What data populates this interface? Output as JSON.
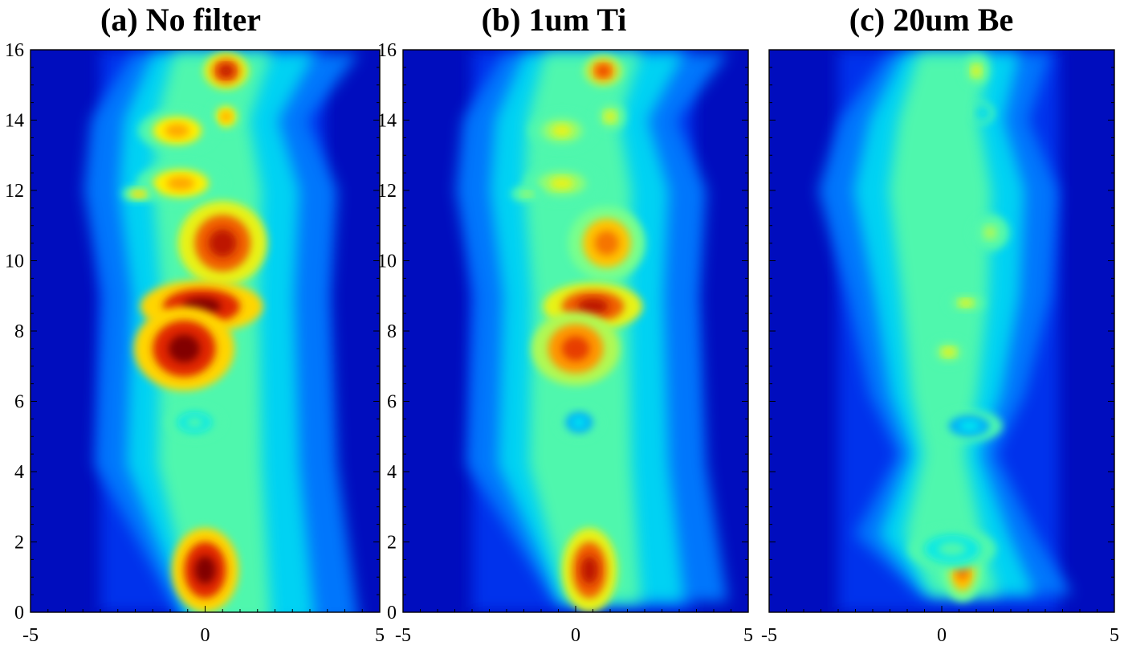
{
  "chart_data": [
    {
      "type": "heatmap",
      "title": "(a) No filter",
      "xlim": [
        -5,
        5
      ],
      "ylim": [
        0,
        16
      ],
      "x_ticks": [
        "-5",
        "0",
        "5"
      ],
      "y_ticks": [
        "0",
        "2",
        "4",
        "6",
        "8",
        "10",
        "12",
        "14",
        "16"
      ],
      "colormap": "jet",
      "spine": [
        [
          -0.3,
          0.6,
          4.2
        ],
        [
          4.2,
          3.0,
          3.6
        ],
        [
          9.0,
          2.8,
          3.4
        ],
        [
          12.0,
          3.3,
          3.6
        ],
        [
          14.0,
          3.1,
          2.8
        ],
        [
          15.9,
          2.0,
          4.2
        ]
      ],
      "hotspots": [
        {
          "x": 0.0,
          "y": 1.2,
          "sx": 0.6,
          "sy": 0.8,
          "level": 1.0
        },
        {
          "x": 0.6,
          "y": 15.4,
          "sx": 0.4,
          "sy": 0.35,
          "level": 0.95
        },
        {
          "x": 0.6,
          "y": 14.1,
          "sx": 0.3,
          "sy": 0.3,
          "level": 0.8
        },
        {
          "x": -0.8,
          "y": 13.7,
          "sx": 0.7,
          "sy": 0.4,
          "level": 0.8
        },
        {
          "x": -0.7,
          "y": 12.2,
          "sx": 0.8,
          "sy": 0.4,
          "level": 0.8
        },
        {
          "x": -1.9,
          "y": 11.9,
          "sx": 0.3,
          "sy": 0.15,
          "level": 0.75
        },
        {
          "x": 0.5,
          "y": 10.5,
          "sx": 0.8,
          "sy": 0.8,
          "level": 0.95
        },
        {
          "x": -0.1,
          "y": 8.7,
          "sx": 1.1,
          "sy": 0.5,
          "level": 1.0
        },
        {
          "x": -0.6,
          "y": 7.5,
          "sx": 0.9,
          "sy": 0.8,
          "level": 1.0
        },
        {
          "x": -0.3,
          "y": 5.4,
          "sx": 0.5,
          "sy": 0.3,
          "level": 0.55
        }
      ]
    },
    {
      "type": "heatmap",
      "title": "(b) 1um Ti",
      "xlim": [
        -5,
        5
      ],
      "ylim": [
        0,
        16
      ],
      "x_ticks": [
        "-5",
        "0",
        "5"
      ],
      "y_ticks": [
        "0",
        "2",
        "4",
        "6",
        "8",
        "10",
        "12",
        "14",
        "16"
      ],
      "colormap": "jet",
      "spine": [
        [
          0.3,
          0.6,
          4.2
        ],
        [
          4.2,
          3.0,
          3.6
        ],
        [
          9.0,
          2.8,
          3.4
        ],
        [
          12.0,
          3.3,
          3.6
        ],
        [
          14.0,
          3.1,
          2.8
        ],
        [
          15.9,
          2.0,
          4.2
        ]
      ],
      "hotspots": [
        {
          "x": 0.4,
          "y": 1.2,
          "sx": 0.5,
          "sy": 0.8,
          "level": 0.95
        },
        {
          "x": 0.8,
          "y": 15.4,
          "sx": 0.35,
          "sy": 0.3,
          "level": 0.9
        },
        {
          "x": 1.0,
          "y": 14.1,
          "sx": 0.3,
          "sy": 0.3,
          "level": 0.7
        },
        {
          "x": -0.4,
          "y": 13.7,
          "sx": 0.6,
          "sy": 0.35,
          "level": 0.7
        },
        {
          "x": -0.4,
          "y": 12.2,
          "sx": 0.7,
          "sy": 0.35,
          "level": 0.7
        },
        {
          "x": -1.4,
          "y": 11.9,
          "sx": 0.3,
          "sy": 0.15,
          "level": 0.65
        },
        {
          "x": 0.9,
          "y": 10.5,
          "sx": 0.7,
          "sy": 0.7,
          "level": 0.85
        },
        {
          "x": 0.5,
          "y": 8.7,
          "sx": 0.9,
          "sy": 0.45,
          "level": 0.95
        },
        {
          "x": 0.0,
          "y": 7.5,
          "sx": 0.8,
          "sy": 0.7,
          "level": 0.9
        },
        {
          "x": 0.1,
          "y": 5.4,
          "sx": 0.4,
          "sy": 0.3,
          "level": 0.45
        }
      ]
    },
    {
      "type": "heatmap",
      "title": "(c) 20um Be",
      "xlim": [
        -5,
        5
      ],
      "ylim": [
        0,
        16
      ],
      "x_ticks": [
        "-5",
        "0",
        "5"
      ],
      "y_ticks": [],
      "colormap": "jet",
      "spine": [
        [
          0.5,
          0.6,
          3.6
        ],
        [
          2.2,
          2.4,
          2.6
        ],
        [
          4.5,
          1.2,
          1.5
        ],
        [
          6.2,
          2.0,
          2.3
        ],
        [
          9.0,
          2.6,
          3.0
        ],
        [
          12.0,
          3.4,
          3.2
        ],
        [
          14.0,
          2.8,
          2.4
        ],
        [
          15.9,
          1.5,
          3.0
        ]
      ],
      "hotspots": [
        {
          "x": 0.6,
          "y": 1.2,
          "sx": 0.35,
          "sy": 0.6,
          "level": 0.85
        },
        {
          "x": 0.3,
          "y": 1.8,
          "sx": 0.8,
          "sy": 0.4,
          "level": 0.55
        },
        {
          "x": 1.0,
          "y": 15.4,
          "sx": 0.25,
          "sy": 0.3,
          "level": 0.7
        },
        {
          "x": 1.2,
          "y": 14.2,
          "sx": 0.2,
          "sy": 0.2,
          "level": 0.5
        },
        {
          "x": 1.4,
          "y": 10.8,
          "sx": 0.35,
          "sy": 0.35,
          "level": 0.65
        },
        {
          "x": 0.7,
          "y": 8.8,
          "sx": 0.35,
          "sy": 0.2,
          "level": 0.7
        },
        {
          "x": 0.2,
          "y": 7.4,
          "sx": 0.35,
          "sy": 0.25,
          "level": 0.7
        },
        {
          "x": 0.8,
          "y": 5.3,
          "sx": 0.6,
          "sy": 0.3,
          "level": 0.45
        }
      ]
    }
  ]
}
